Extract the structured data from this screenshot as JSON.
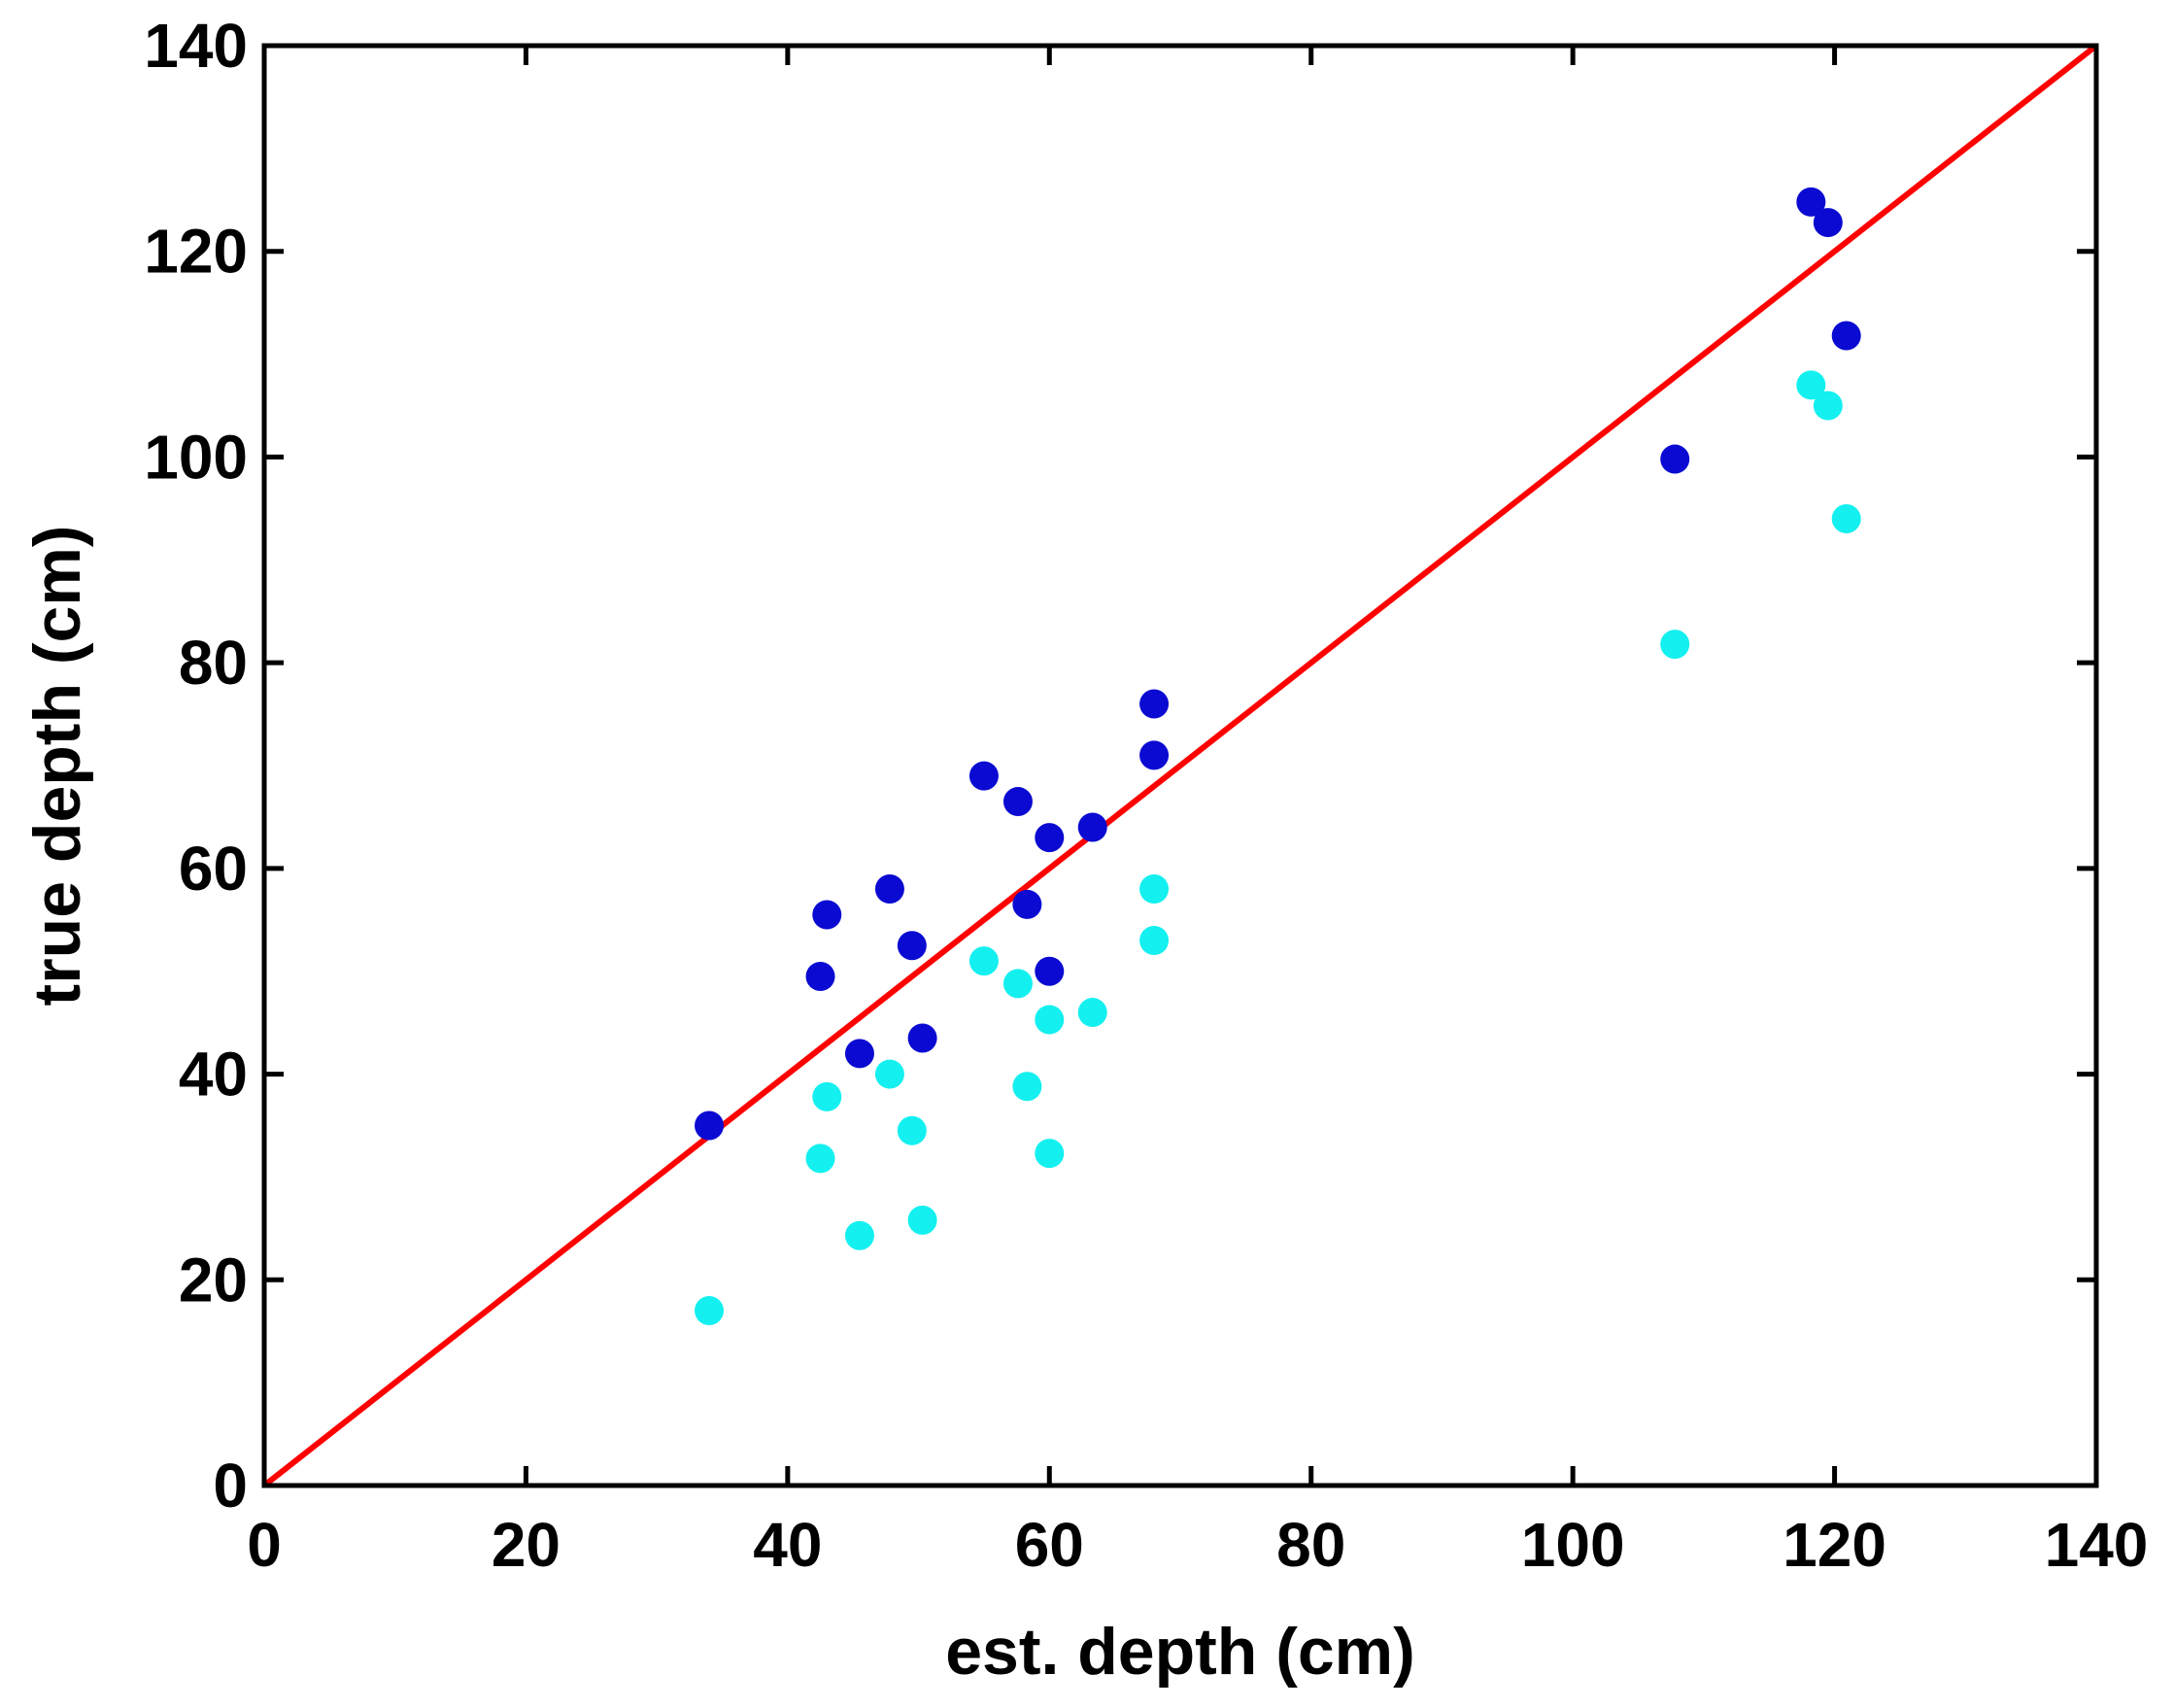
{
  "chart_data": {
    "type": "scatter",
    "title": "",
    "xlabel": "est. depth (cm)",
    "ylabel": "true depth (cm)",
    "xlim": [
      0,
      140
    ],
    "ylim": [
      0,
      140
    ],
    "xticks": [
      0,
      20,
      40,
      60,
      80,
      100,
      120,
      140
    ],
    "yticks": [
      0,
      20,
      40,
      60,
      80,
      100,
      120,
      140
    ],
    "grid": false,
    "legend": "none",
    "reference_line": {
      "name": "identity line (y = x)",
      "x": [
        0,
        140
      ],
      "y": [
        0,
        140
      ],
      "color": "#ff0000"
    },
    "series": [
      {
        "name": "dark blue points",
        "color": "#0a0ad2",
        "x": [
          34.0,
          42.5,
          43.0,
          45.5,
          47.8,
          49.5,
          50.3,
          55.0,
          57.6,
          58.3,
          60.0,
          60.0,
          63.3,
          68.0,
          68.0,
          107.8,
          118.2,
          119.5,
          120.9
        ],
        "y": [
          35.0,
          49.5,
          55.5,
          42.0,
          58.0,
          52.5,
          43.5,
          69.0,
          66.5,
          56.5,
          63.0,
          50.0,
          64.0,
          76.0,
          71.0,
          99.8,
          124.8,
          122.8,
          111.8
        ]
      },
      {
        "name": "cyan points",
        "color": "#14f0f0",
        "x": [
          34.0,
          42.5,
          43.0,
          45.5,
          47.8,
          49.5,
          50.3,
          55.0,
          57.6,
          58.3,
          60.0,
          60.0,
          63.3,
          68.0,
          68.0,
          107.8,
          118.2,
          119.5,
          120.9
        ],
        "y": [
          17.0,
          31.8,
          37.8,
          24.3,
          40.0,
          34.5,
          25.8,
          51.0,
          48.8,
          38.8,
          45.3,
          32.3,
          46.0,
          58.0,
          53.0,
          81.8,
          107.0,
          105.0,
          94.0
        ]
      }
    ]
  }
}
